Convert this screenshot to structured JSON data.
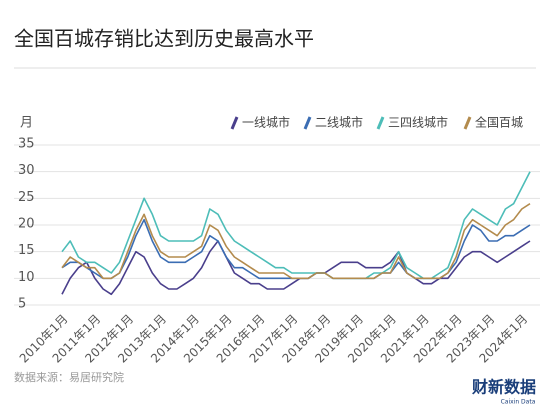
{
  "title": "全国百城存销比达到历史最高水平",
  "source": "数据来源：易居研究院",
  "logo": {
    "text": "财新数据",
    "sub": "Caixin Data"
  },
  "chart_data": {
    "type": "line",
    "y_label": "月",
    "categories": [
      "2010年1月",
      null,
      null,
      null,
      "2011年1月",
      null,
      null,
      null,
      "2012年1月",
      null,
      null,
      null,
      "2013年1月",
      null,
      null,
      null,
      "2014年1月",
      null,
      null,
      null,
      "2015年1月",
      null,
      null,
      null,
      "2016年1月",
      null,
      null,
      null,
      "2017年1月",
      null,
      null,
      null,
      "2018年1月",
      null,
      null,
      null,
      "2019年1月",
      null,
      null,
      null,
      "2020年1月",
      null,
      null,
      null,
      "2021年1月",
      null,
      null,
      null,
      "2022年1月",
      null,
      null,
      null,
      "2023年1月",
      null,
      null,
      null,
      "2024年1月",
      null
    ],
    "series": [
      {
        "name": "一线城市",
        "color": "#4a3f8c",
        "values": [
          7,
          10,
          12,
          13,
          10,
          8,
          7,
          9,
          12,
          15,
          14,
          11,
          9,
          8,
          8,
          9,
          10,
          12,
          15,
          17,
          14,
          11,
          10,
          9,
          9,
          8,
          8,
          8,
          9,
          10,
          10,
          11,
          11,
          12,
          13,
          13,
          13,
          12,
          12,
          12,
          13,
          15,
          11,
          10,
          9,
          9,
          10,
          10,
          12,
          14,
          15,
          15,
          14,
          13,
          14,
          15,
          16,
          17
        ]
      },
      {
        "name": "二线城市",
        "color": "#3b6db3",
        "values": [
          12,
          13,
          13,
          12,
          11,
          10,
          10,
          11,
          14,
          18,
          21,
          17,
          14,
          13,
          13,
          13,
          14,
          15,
          18,
          17,
          14,
          12,
          12,
          11,
          10,
          10,
          10,
          10,
          10,
          10,
          10,
          11,
          11,
          10,
          10,
          10,
          10,
          10,
          10,
          11,
          11,
          13,
          11,
          10,
          10,
          10,
          10,
          11,
          13,
          17,
          20,
          19,
          17,
          17,
          18,
          18,
          19,
          20
        ]
      },
      {
        "name": "三四线城市",
        "color": "#4dbdb8",
        "values": [
          15,
          17,
          14,
          13,
          13,
          12,
          11,
          13,
          17,
          21,
          25,
          22,
          18,
          17,
          17,
          17,
          17,
          18,
          23,
          22,
          19,
          17,
          16,
          15,
          14,
          13,
          12,
          12,
          11,
          11,
          11,
          11,
          11,
          10,
          10,
          10,
          10,
          10,
          11,
          11,
          12,
          15,
          12,
          11,
          10,
          10,
          11,
          12,
          16,
          21,
          23,
          22,
          21,
          20,
          23,
          24,
          27,
          30
        ]
      },
      {
        "name": "全国百城",
        "color": "#b38b4d",
        "values": [
          12,
          14,
          13,
          12,
          12,
          10,
          10,
          11,
          15,
          19,
          22,
          18,
          15,
          14,
          14,
          14,
          15,
          16,
          20,
          19,
          16,
          14,
          13,
          12,
          11,
          11,
          11,
          11,
          10,
          10,
          10,
          11,
          11,
          10,
          10,
          10,
          10,
          10,
          10,
          11,
          11,
          14,
          11,
          10,
          10,
          10,
          10,
          11,
          14,
          19,
          21,
          20,
          19,
          18,
          20,
          21,
          23,
          24
        ]
      }
    ],
    "ylim": [
      5,
      35
    ],
    "yticks": [
      5,
      10,
      15,
      20,
      25,
      30,
      35
    ],
    "grid": true
  }
}
